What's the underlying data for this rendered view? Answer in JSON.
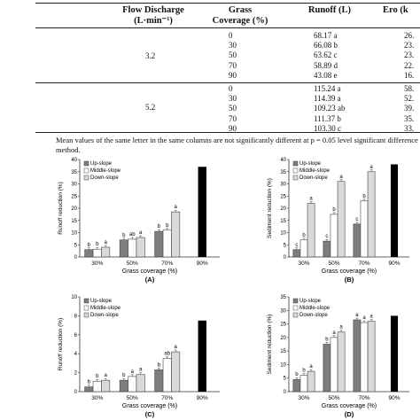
{
  "table": {
    "headers": [
      "Flow Discharge (L·min⁻¹)",
      "Grass Coverage (%)",
      "Runoff (L)",
      "Ero (k"
    ],
    "groups": [
      {
        "flow": "3.2",
        "rows": [
          {
            "coverage": "0",
            "runoff": "68.17 a",
            "erosion": "26."
          },
          {
            "coverage": "30",
            "runoff": "66.08 b",
            "erosion": "23."
          },
          {
            "coverage": "50",
            "runoff": "63.62 c",
            "erosion": "23."
          },
          {
            "coverage": "70",
            "runoff": "58.89 d",
            "erosion": "22."
          },
          {
            "coverage": "90",
            "runoff": "43.08 e",
            "erosion": "16."
          }
        ]
      },
      {
        "flow": "5.2",
        "rows": [
          {
            "coverage": "0",
            "runoff": "115.24 a",
            "erosion": "58."
          },
          {
            "coverage": "30",
            "runoff": "114.39 a",
            "erosion": "52."
          },
          {
            "coverage": "50",
            "runoff": "109.23 ab",
            "erosion": "39."
          },
          {
            "coverage": "70",
            "runoff": "111.37 b",
            "erosion": "35."
          },
          {
            "coverage": "90",
            "runoff": "103.30 c",
            "erosion": "33."
          }
        ]
      }
    ]
  },
  "note": "Mean values of the same letter in the same columns are not significantly different at p = 0.05 level significant difference method.",
  "colors": {
    "up": "#7d7d7d",
    "middle": "#ffffff",
    "down": "#d9d9d9",
    "total": "#000000"
  },
  "chart_data": [
    {
      "type": "bar",
      "panel": "(A)",
      "xlabel": "Grass coverage (%)",
      "ylabel": "Runoff reduction (%)",
      "ylim": [
        0,
        40
      ],
      "yticks": [
        0,
        5,
        10,
        15,
        20,
        25,
        30,
        35,
        40
      ],
      "grid": false,
      "legend": "top-left",
      "categories": [
        "30%",
        "50%",
        "70%"
      ],
      "series": [
        {
          "name": "Up-slope",
          "values": [
            3,
            7,
            10.5
          ],
          "letters": [
            "b",
            "b",
            "b"
          ]
        },
        {
          "name": "Middle-slope",
          "values": [
            3.2,
            7.3,
            11
          ],
          "letters": [
            "b",
            "ab",
            "b"
          ]
        },
        {
          "name": "Down-slope",
          "values": [
            4,
            8,
            18.5
          ],
          "letters": [
            "a",
            "a",
            "a"
          ]
        }
      ],
      "total": {
        "category": "90%",
        "value": 37
      }
    },
    {
      "type": "bar",
      "panel": "(B)",
      "xlabel": "Grass coverage (%)",
      "ylabel": "Sediment reduction (%)",
      "ylim": [
        0,
        40
      ],
      "yticks": [
        0,
        5,
        10,
        15,
        20,
        25,
        30,
        35,
        40
      ],
      "grid": false,
      "legend": "top-left",
      "categories": [
        "30%",
        "50%",
        "70%"
      ],
      "series": [
        {
          "name": "Up-slope",
          "values": [
            3,
            6.5,
            13.5
          ],
          "letters": [
            "c",
            "c",
            "c"
          ]
        },
        {
          "name": "Middle-slope",
          "values": [
            7,
            17.5,
            23
          ],
          "letters": [
            "b",
            "b",
            "b"
          ]
        },
        {
          "name": "Down-slope",
          "values": [
            22,
            31,
            35
          ],
          "letters": [
            "a",
            "a",
            "a"
          ]
        }
      ],
      "total": {
        "category": "90%",
        "value": 38
      }
    },
    {
      "type": "bar",
      "panel": "(C)",
      "xlabel": "Grass coverage (%)",
      "ylabel": "Runoff reduction (%)",
      "ylim": [
        0,
        10
      ],
      "yticks": [
        0,
        2,
        4,
        6,
        8,
        10
      ],
      "grid": false,
      "legend": "top-left",
      "categories": [
        "30%",
        "50%",
        "70%"
      ],
      "series": [
        {
          "name": "Up-slope",
          "values": [
            0.5,
            1.2,
            2.3
          ],
          "letters": [
            "b",
            "b",
            "b"
          ]
        },
        {
          "name": "Middle-slope",
          "values": [
            1.1,
            1.6,
            3.5
          ],
          "letters": [
            "b",
            "a",
            "ab"
          ]
        },
        {
          "name": "Down-slope",
          "values": [
            1.2,
            1.8,
            4.2
          ],
          "letters": [
            "a",
            "a",
            "a"
          ]
        }
      ],
      "total": {
        "category": "90%",
        "value": 7.5
      }
    },
    {
      "type": "bar",
      "panel": "(D)",
      "xlabel": "Grass coverage (%)",
      "ylabel": "Sediment reduction (%)",
      "ylim": [
        0,
        35
      ],
      "yticks": [
        0,
        5,
        10,
        15,
        20,
        25,
        30,
        35
      ],
      "grid": false,
      "legend": "top-left",
      "categories": [
        "30%",
        "50%",
        "70%"
      ],
      "series": [
        {
          "name": "Up-slope",
          "values": [
            4.5,
            17.5,
            26.5
          ],
          "letters": [
            "b",
            "b",
            "a"
          ]
        },
        {
          "name": "Middle-slope",
          "values": [
            6,
            20,
            25.5
          ],
          "letters": [
            "b",
            "a",
            "a"
          ]
        },
        {
          "name": "Down-slope",
          "values": [
            7.5,
            22,
            26
          ],
          "letters": [
            "a",
            "a",
            "a"
          ]
        }
      ],
      "total": {
        "category": "90%",
        "value": 28
      }
    }
  ]
}
